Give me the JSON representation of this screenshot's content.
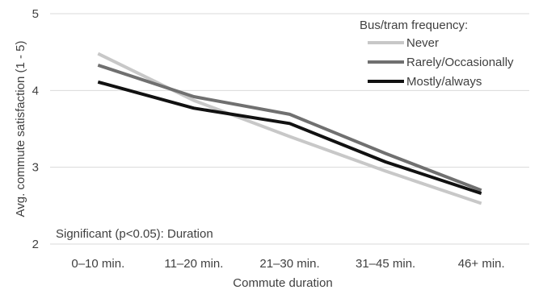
{
  "chart_data": {
    "type": "line",
    "categories": [
      "0–10 min.",
      "11–20 min.",
      "21–30 min.",
      "31–45 min.",
      "46+ min."
    ],
    "series": [
      {
        "name": "Never",
        "values": [
          4.48,
          3.87,
          3.4,
          2.95,
          2.53
        ],
        "color": "#c8c8c8"
      },
      {
        "name": "Rarely/Occasionally",
        "values": [
          4.33,
          3.92,
          3.69,
          3.18,
          2.7
        ],
        "color": "#707070"
      },
      {
        "name": "Mostly/always",
        "values": [
          4.11,
          3.77,
          3.57,
          3.07,
          2.66
        ],
        "color": "#111111"
      }
    ],
    "xlabel": "Commute duration",
    "ylabel": "Avg. commute satisfaction (1 - 5)",
    "ylim": [
      2,
      5
    ],
    "yticks": [
      2,
      3,
      4,
      5
    ],
    "grid": true,
    "legend_title": "Bus/tram frequency:",
    "legend_position": "top-right",
    "annotation": "Significant (p<0.05): Duration"
  }
}
